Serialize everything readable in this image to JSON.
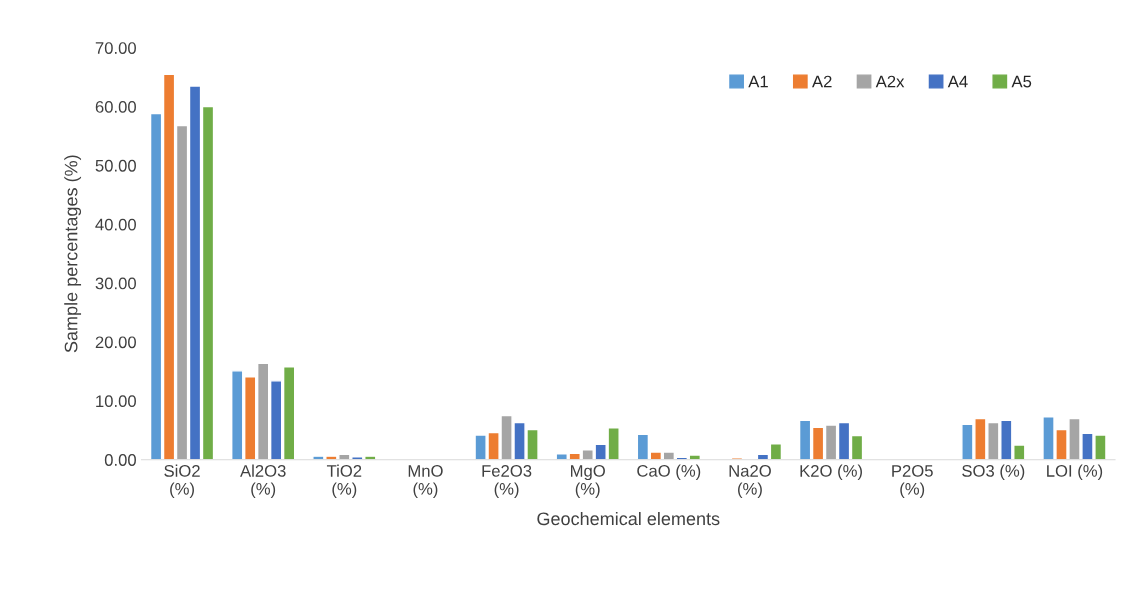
{
  "chart_data": {
    "type": "bar",
    "xlabel": "Geochemical elements",
    "ylabel": "Sample percentages (%)",
    "categories": [
      "SiO2\n(%)",
      "Al2O3\n(%)",
      "TiO2\n(%)",
      "MnO\n(%)",
      "Fe2O3\n(%)",
      "MgO\n(%)",
      "CaO (%)",
      "Na2O\n(%)",
      "K2O (%)",
      "P2O5\n(%)",
      "SO3 (%)",
      "LOI (%)"
    ],
    "series": [
      {
        "name": "A1",
        "color": "#5b9bd5",
        "values": [
          58.8,
          15.1,
          0.6,
          null,
          4.2,
          1.0,
          4.3,
          null,
          6.7,
          null,
          6.0,
          7.3
        ]
      },
      {
        "name": "A2",
        "color": "#ed7d31",
        "values": [
          65.5,
          14.1,
          0.6,
          null,
          4.6,
          1.1,
          1.3,
          0.3,
          5.5,
          null,
          7.0,
          5.1
        ]
      },
      {
        "name": "A2x",
        "color": "#a5a5a5",
        "values": [
          56.8,
          16.4,
          0.9,
          null,
          7.5,
          1.7,
          1.3,
          null,
          5.9,
          null,
          6.3,
          7.0
        ]
      },
      {
        "name": "A4",
        "color": "#4472c4",
        "values": [
          63.5,
          13.4,
          0.5,
          null,
          6.3,
          2.6,
          0.4,
          0.9,
          6.3,
          null,
          6.7,
          4.5
        ]
      },
      {
        "name": "A5",
        "color": "#70ad47",
        "values": [
          60.0,
          15.8,
          0.6,
          null,
          5.1,
          5.4,
          0.8,
          2.7,
          4.1,
          null,
          2.5,
          4.2
        ]
      }
    ],
    "ylim": [
      0,
      70
    ],
    "yticks": [
      {
        "value": 0,
        "label": "0.00"
      },
      {
        "value": 10,
        "label": "10.00"
      },
      {
        "value": 20,
        "label": "20.00"
      },
      {
        "value": 30,
        "label": "30.00"
      },
      {
        "value": 40,
        "label": "40.00"
      },
      {
        "value": 50,
        "label": "50.00"
      },
      {
        "value": 60,
        "label": "60.00"
      },
      {
        "value": 70,
        "label": "70.00"
      }
    ],
    "grid": false,
    "legend": "top right"
  }
}
